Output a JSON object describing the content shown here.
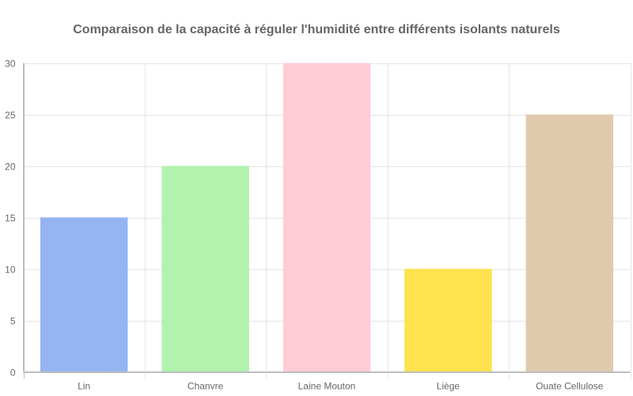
{
  "chart_data": {
    "type": "bar",
    "title": "Comparaison de la capacité à réguler l'humidité entre différents isolants naturels",
    "xlabel": "",
    "ylabel": "",
    "categories": [
      "Lin",
      "Chanvre",
      "Laine Mouton",
      "Liège",
      "Ouate Cellulose"
    ],
    "values": [
      15,
      20,
      30,
      10,
      25
    ],
    "colors": [
      "#94b4f2",
      "#b1f2ad",
      "#ffccd5",
      "#ffe24d",
      "#dfcaae"
    ],
    "ylim": [
      0,
      30
    ],
    "yticks": [
      "0",
      "5",
      "10",
      "15",
      "20",
      "25",
      "30"
    ],
    "grid": true,
    "legend": "none"
  }
}
